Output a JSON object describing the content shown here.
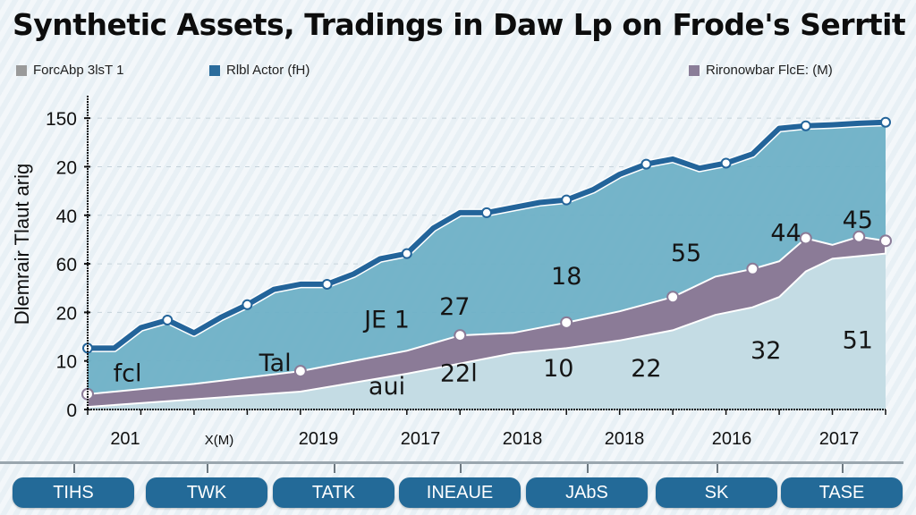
{
  "title": "Synthetic Assets, Tradings in Daw Lp on Frode's Serrtit",
  "legend": [
    {
      "label": "ForcAbp 3lsT 1",
      "color": "#9a9a9a"
    },
    {
      "label": "Rlbl Actor (fH)",
      "color": "#2a6c9c"
    },
    {
      "label": "Rironowbar FlcE: (M)",
      "color": "#8a7d98"
    }
  ],
  "colors": {
    "top_line": "#23649a",
    "top_fill": "#6eb0c6",
    "mid_band": "#8b7b97",
    "bottom_fill": "#c4dce4"
  },
  "chart_data": {
    "type": "area",
    "title": "Synthetic Assets, Tradings in Daw Lp on Frode's Serrtit",
    "ylabel": "Dlemrair Tlaut arig",
    "xlabel": "",
    "yticks": [
      "0",
      "10",
      "20",
      "60",
      "40",
      "20",
      "150"
    ],
    "xticks": [
      "201",
      "X(M)",
      "2019",
      "2017",
      "2018",
      "2018",
      "2016",
      "2017"
    ],
    "ylim": [
      0,
      6
    ],
    "grid": true,
    "legend_position": "top",
    "series": [
      {
        "name": "Rlbl Actor (fH)",
        "role": "upper line",
        "x": [
          0,
          0.5,
          1,
          1.5,
          2,
          2.5,
          3,
          3.5,
          4,
          4.5,
          5,
          5.5,
          6,
          6.5,
          7,
          7.5,
          8,
          8.5,
          9,
          9.5,
          10,
          10.5,
          11,
          11.5,
          12,
          12.5,
          13,
          13.5,
          14,
          14.5,
          15
        ],
        "values": [
          1.2,
          1.2,
          1.6,
          1.75,
          1.5,
          1.8,
          2.05,
          2.35,
          2.45,
          2.45,
          2.65,
          2.95,
          3.05,
          3.55,
          3.85,
          3.85,
          3.95,
          4.05,
          4.1,
          4.3,
          4.6,
          4.8,
          4.9,
          4.72,
          4.82,
          5.0,
          5.5,
          5.55,
          5.57,
          5.6,
          5.62
        ]
      },
      {
        "name": "Rironowbar FlcE: (M)",
        "role": "band upper",
        "x": [
          0,
          2,
          4,
          6,
          7,
          8,
          9,
          10,
          11,
          11.8,
          12.5,
          13,
          13.5,
          14,
          14.5,
          15
        ],
        "values": [
          0.3,
          0.5,
          0.75,
          1.15,
          1.45,
          1.5,
          1.7,
          1.92,
          2.2,
          2.6,
          2.75,
          2.9,
          3.35,
          3.22,
          3.38,
          3.3
        ]
      },
      {
        "name": "ForcAbp 3lsT 1",
        "role": "band lower",
        "x": [
          0,
          2,
          4,
          6,
          7,
          8,
          9,
          10,
          11,
          11.8,
          12.5,
          13,
          13.5,
          14,
          14.5,
          15
        ],
        "values": [
          0.05,
          0.2,
          0.35,
          0.7,
          0.9,
          1.1,
          1.2,
          1.35,
          1.55,
          1.85,
          2.0,
          2.2,
          2.7,
          2.95,
          3.0,
          3.05
        ]
      }
    ],
    "annotations": [
      {
        "text": "fcl",
        "x": 1.0,
        "y": 0.55
      },
      {
        "text": "Tal",
        "x": 4.7,
        "y": 0.75
      },
      {
        "text": "JE 1",
        "x": 7.5,
        "y": 1.6
      },
      {
        "text": "27",
        "x": 9.2,
        "y": 1.85
      },
      {
        "text": "18",
        "x": 12.0,
        "y": 2.45
      },
      {
        "text": "55",
        "x": 15.0,
        "y": 2.9
      },
      {
        "text": "44",
        "x": 17.5,
        "y": 3.3
      },
      {
        "text": "45",
        "x": 19.3,
        "y": 3.55
      },
      {
        "text": "aui",
        "x": 7.5,
        "y": 0.3
      },
      {
        "text": "22l",
        "x": 9.3,
        "y": 0.55
      },
      {
        "text": "10",
        "x": 11.8,
        "y": 0.65
      },
      {
        "text": "22",
        "x": 14.0,
        "y": 0.65
      },
      {
        "text": "32",
        "x": 17.0,
        "y": 1.0
      },
      {
        "text": "51",
        "x": 19.3,
        "y": 1.2
      }
    ]
  },
  "timeline": {
    "buttons": [
      "TIHS",
      "TWK",
      "TATK",
      "INEAUE",
      "JAbS",
      "SK",
      "TASE"
    ]
  }
}
